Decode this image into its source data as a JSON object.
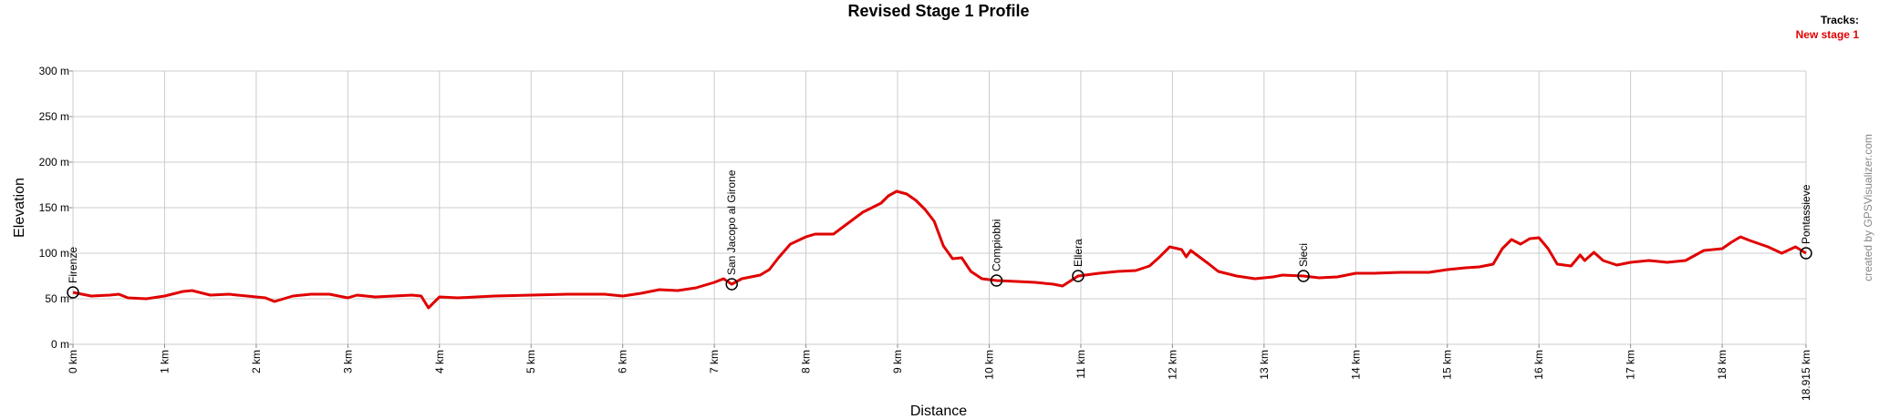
{
  "chart_data": {
    "type": "line",
    "title": "Revised Stage 1 Profile",
    "x_label": "Distance",
    "y_label": "Elevation",
    "legend_title": "Tracks:",
    "credit": "created by GPSVisualizer.com",
    "xlim": [
      0,
      18.915
    ],
    "ylim": [
      0,
      300
    ],
    "xticks": [
      {
        "value": 0,
        "label": "0 km"
      },
      {
        "value": 1,
        "label": "1 km"
      },
      {
        "value": 2,
        "label": "2 km"
      },
      {
        "value": 3,
        "label": "3 km"
      },
      {
        "value": 4,
        "label": "4 km"
      },
      {
        "value": 5,
        "label": "5 km"
      },
      {
        "value": 6,
        "label": "6 km"
      },
      {
        "value": 7,
        "label": "7 km"
      },
      {
        "value": 8,
        "label": "8 km"
      },
      {
        "value": 9,
        "label": "9 km"
      },
      {
        "value": 10,
        "label": "10 km"
      },
      {
        "value": 11,
        "label": "11 km"
      },
      {
        "value": 12,
        "label": "12 km"
      },
      {
        "value": 13,
        "label": "13 km"
      },
      {
        "value": 14,
        "label": "14 km"
      },
      {
        "value": 15,
        "label": "15 km"
      },
      {
        "value": 16,
        "label": "16 km"
      },
      {
        "value": 17,
        "label": "17 km"
      },
      {
        "value": 18,
        "label": "18 km"
      },
      {
        "value": 18.915,
        "label": "18.915 km"
      }
    ],
    "yticks": [
      {
        "value": 0,
        "label": "0 m"
      },
      {
        "value": 50,
        "label": "50 m"
      },
      {
        "value": 100,
        "label": "100 m"
      },
      {
        "value": 150,
        "label": "150 m"
      },
      {
        "value": 200,
        "label": "200 m"
      },
      {
        "value": 250,
        "label": "250 m"
      },
      {
        "value": 300,
        "label": "300 m"
      }
    ],
    "grid": true,
    "x": [
      0,
      0.2,
      0.4,
      0.5,
      0.6,
      0.8,
      1.0,
      1.2,
      1.3,
      1.5,
      1.7,
      1.9,
      2.1,
      2.2,
      2.4,
      2.6,
      2.8,
      3.0,
      3.1,
      3.3,
      3.5,
      3.7,
      3.8,
      3.88,
      4.0,
      4.2,
      4.4,
      4.6,
      5.0,
      5.4,
      5.8,
      6.0,
      6.2,
      6.4,
      6.6,
      6.8,
      7.0,
      7.1,
      7.19,
      7.3,
      7.5,
      7.6,
      7.7,
      7.83,
      8.0,
      8.1,
      8.3,
      8.42,
      8.62,
      8.82,
      8.9,
      8.99,
      9.1,
      9.2,
      9.3,
      9.4,
      9.5,
      9.6,
      9.7,
      9.8,
      9.92,
      10.08,
      10.3,
      10.5,
      10.7,
      10.8,
      10.97,
      11.2,
      11.4,
      11.6,
      11.75,
      11.85,
      11.97,
      12.1,
      12.15,
      12.2,
      12.4,
      12.5,
      12.7,
      12.9,
      13.1,
      13.2,
      13.43,
      13.6,
      13.8,
      14.0,
      14.2,
      14.5,
      14.8,
      15.0,
      15.2,
      15.35,
      15.5,
      15.6,
      15.7,
      15.8,
      15.9,
      16.0,
      16.1,
      16.2,
      16.35,
      16.45,
      16.5,
      16.6,
      16.7,
      16.85,
      17.0,
      17.2,
      17.4,
      17.6,
      17.8,
      18.0,
      18.1,
      18.2,
      18.3,
      18.5,
      18.65,
      18.8,
      18.915
    ],
    "series": [
      {
        "name": "New stage 1",
        "color": "#e00000",
        "values": [
          57,
          53,
          54,
          55,
          51,
          50,
          53,
          58,
          59,
          54,
          55,
          53,
          51,
          47,
          53,
          55,
          55,
          51,
          54,
          52,
          53,
          54,
          53,
          40,
          52,
          51,
          52,
          53,
          54,
          55,
          55,
          53,
          56,
          60,
          59,
          62,
          68,
          72,
          66,
          72,
          76,
          82,
          95,
          110,
          118,
          121,
          121,
          130,
          145,
          155,
          163,
          168,
          165,
          158,
          148,
          135,
          108,
          94,
          95,
          80,
          72,
          70,
          69,
          68,
          66,
          64,
          75,
          78,
          80,
          81,
          86,
          95,
          107,
          104,
          96,
          103,
          88,
          80,
          75,
          72,
          74,
          76,
          75,
          73,
          74,
          78,
          78,
          79,
          79,
          82,
          84,
          85,
          88,
          105,
          115,
          110,
          116,
          117,
          105,
          88,
          86,
          98,
          92,
          101,
          92,
          87,
          90,
          92,
          90,
          92,
          103,
          105,
          112,
          118,
          114,
          107,
          100,
          107,
          100
        ]
      }
    ],
    "waypoints": [
      {
        "name": "Firenze",
        "x": 0,
        "y": 57
      },
      {
        "name": "San Jacopo al Girone",
        "x": 7.19,
        "y": 66
      },
      {
        "name": "Compiobbi",
        "x": 10.08,
        "y": 70
      },
      {
        "name": "Ellera",
        "x": 10.97,
        "y": 75
      },
      {
        "name": "Sieci",
        "x": 13.43,
        "y": 75
      },
      {
        "name": "Pontassieve",
        "x": 18.915,
        "y": 100
      }
    ]
  }
}
